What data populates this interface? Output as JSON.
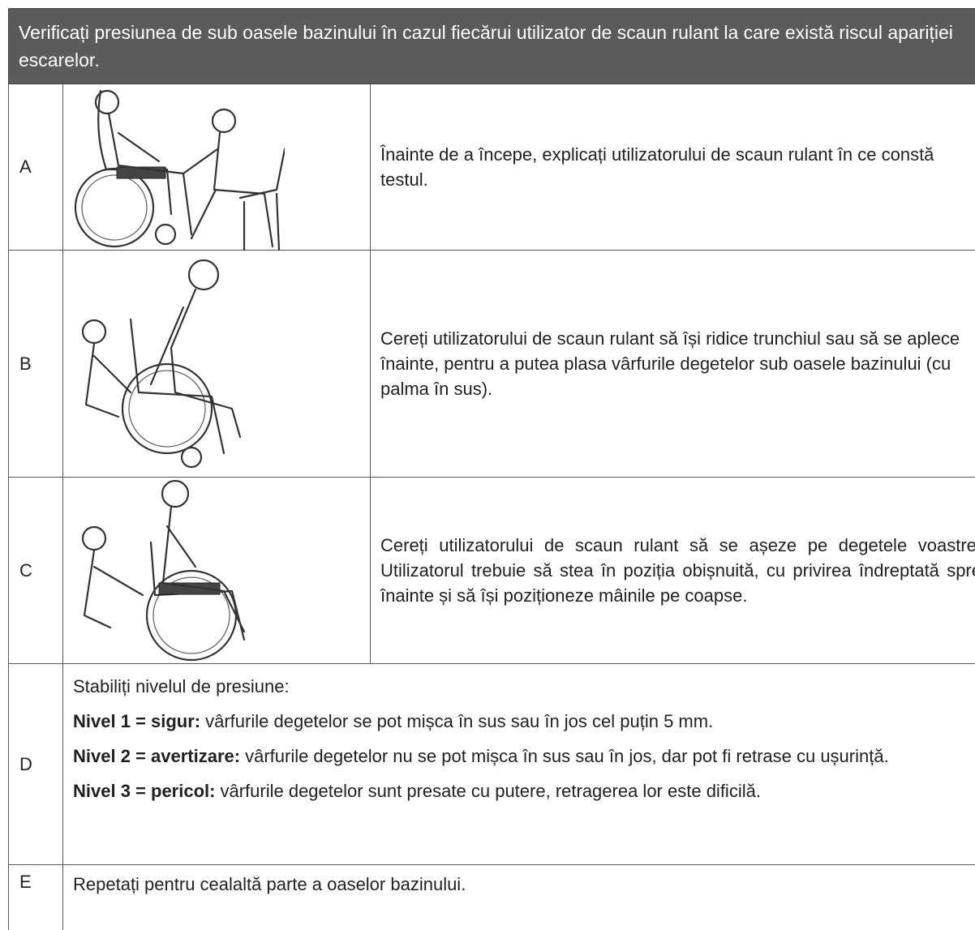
{
  "header": {
    "title": "Verificați presiunea de sub oasele bazinului în cazul fiecărui utilizator de scaun rulant la care există riscul apariției escarelor."
  },
  "rows": [
    {
      "label": "A",
      "text": "Înainte de a începe, explicați utilizatorului de scaun rulant în ce constă testul."
    },
    {
      "label": "B",
      "text": "Cereți utilizatorului de scaun rulant să își ridice trunchiul sau să se aplece înainte, pentru a putea plasa vârfurile degetelor sub oasele bazinului (cu palma în sus)."
    },
    {
      "label": "C",
      "text": "Cereți utilizatorului de scaun rulant să se așeze pe degetele voastre. Utilizatorul trebuie să stea în poziția obișnuită, cu privirea îndreptată spre înainte și să își poziționeze mâinile pe coapse."
    },
    {
      "label": "D",
      "intro": "Stabiliți nivelul de presiune:",
      "levels": [
        {
          "term": "Nivel 1 = sigur:",
          "text": "vârfurile degetelor se pot mișca în sus sau în jos cel puțin 5 mm."
        },
        {
          "term": "Nivel 2 = avertizare:",
          "text": "vârfurile degetelor nu se pot mișca în sus sau în jos, dar pot fi retrase cu ușurință."
        },
        {
          "term": "Nivel 3 = pericol:",
          "text": "vârfurile degetelor sunt presate cu putere, retragerea lor este dificilă."
        }
      ]
    },
    {
      "label": "E",
      "text": "Repetați pentru cealaltă parte a oaselor bazinului."
    }
  ]
}
